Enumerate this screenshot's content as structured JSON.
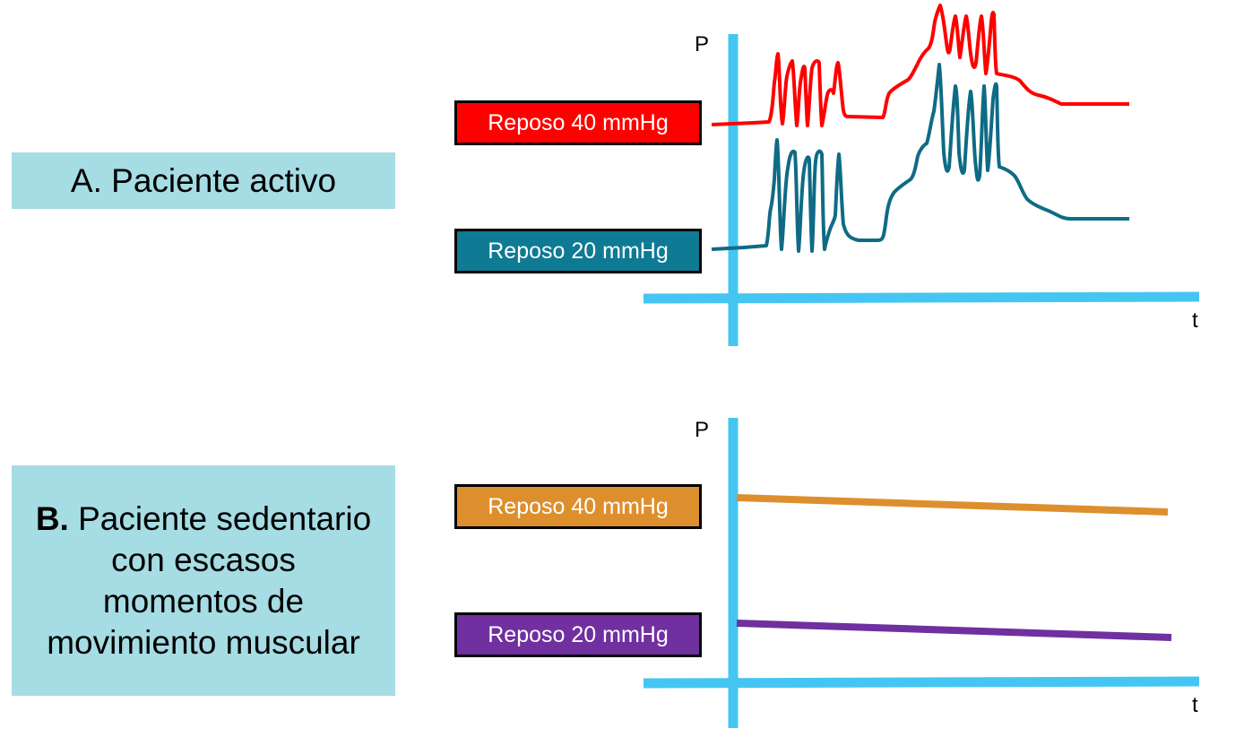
{
  "panel_a": {
    "title": "A. Paciente activo",
    "y_axis_label": "P",
    "x_axis_label": "t",
    "series": [
      {
        "label": "Reposo 40 mmHg",
        "color": "#ff0000"
      },
      {
        "label": "Reposo 20 mmHg",
        "color": "#0f7a94"
      }
    ]
  },
  "panel_b": {
    "title_bold": "B.",
    "title_rest": " Paciente sedentario con escasos momentos de movimiento muscular",
    "y_axis_label": "P",
    "x_axis_label": "t",
    "series": [
      {
        "label": "Reposo 40 mmHg",
        "color": "#dd8f2e"
      },
      {
        "label": "Reposo 20 mmHg",
        "color": "#7030a0"
      }
    ]
  },
  "colors": {
    "axis": "#45c6f2",
    "label_background": "#a6dce3",
    "trace_a_high": "#ff0000",
    "trace_a_low": "#0f6b85"
  }
}
